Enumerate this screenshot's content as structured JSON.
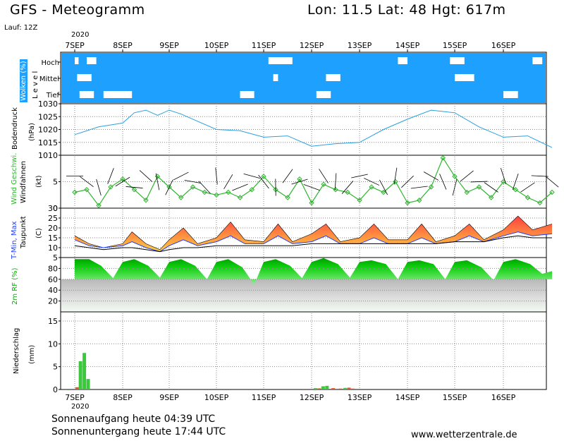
{
  "header": {
    "title": "GFS - Meteogramm",
    "location": "Lon: 11.5 Lat: 48 Hgt: 617m",
    "run": "Lauf: 12Z",
    "year_top": "2020",
    "year_bottom": "2020"
  },
  "footer": {
    "sunrise": "Sonnenaufgang heute 04:39 UTC",
    "sunset": "Sonnenuntergang heute 17:44 UTC",
    "site": "www.wetterzentrale.de"
  },
  "colors": {
    "cloud": "#1ea0ff",
    "pressure_line": "#2aa0e0",
    "wind": "#2fb52f",
    "tmax_top": "#ff4040",
    "tmax_bottom": "#ffd040",
    "tmin": "#1e3cff",
    "dew": "#000000",
    "rh": "#00cc00",
    "precip_conv": "#3cc83c",
    "precip_large": "#e05a28"
  },
  "chart_data": {
    "type": "meteogram",
    "days": [
      "7SEP",
      "8SEP",
      "9SEP",
      "10SEP",
      "11SEP",
      "12SEP",
      "13SEP",
      "14SEP",
      "15SEP",
      "16SEP"
    ],
    "clouds": {
      "ylabel": "Wolken (%)",
      "ylabel2": "L e v e l",
      "levels": [
        "Hoch",
        "Mittel",
        "Tief"
      ],
      "gaps": [
        {
          "level": "Hoch",
          "t": [
            0.0,
            0.08
          ]
        },
        {
          "level": "Hoch",
          "t": [
            0.25,
            0.45
          ]
        },
        {
          "level": "Hoch",
          "t": [
            4.1,
            4.6
          ]
        },
        {
          "level": "Hoch",
          "t": [
            6.8,
            7.0
          ]
        },
        {
          "level": "Hoch",
          "t": [
            7.9,
            8.2
          ]
        },
        {
          "level": "Hoch",
          "t": [
            9.6,
            9.8
          ]
        },
        {
          "level": "Mittel",
          "t": [
            0.05,
            0.35
          ]
        },
        {
          "level": "Mittel",
          "t": [
            4.2,
            4.3
          ]
        },
        {
          "level": "Mittel",
          "t": [
            5.3,
            5.6
          ]
        },
        {
          "level": "Mittel",
          "t": [
            8.0,
            8.4
          ]
        },
        {
          "level": "Tief",
          "t": [
            0.1,
            0.4
          ]
        },
        {
          "level": "Tief",
          "t": [
            0.6,
            1.2
          ]
        },
        {
          "level": "Tief",
          "t": [
            3.5,
            3.8
          ]
        },
        {
          "level": "Tief",
          "t": [
            5.1,
            5.4
          ]
        },
        {
          "level": "Tief",
          "t": [
            9.0,
            9.3
          ]
        },
        {
          "level": "Tief",
          "t": [
            9.9,
            10.0
          ]
        }
      ]
    },
    "pressure": {
      "ylabel": "Bodendruck",
      "unit": "(hPa)",
      "ticks": [
        1010,
        1015,
        1020,
        1025,
        1030
      ],
      "ylim": [
        1010,
        1030
      ],
      "t": [
        0,
        0.5,
        1,
        1.25,
        1.5,
        1.75,
        2,
        2.25,
        2.5,
        3,
        3.5,
        4,
        4.5,
        5,
        5.5,
        6,
        6.5,
        7,
        7.5,
        8,
        8.5,
        9,
        9.5,
        10
      ],
      "values": [
        1018,
        1021,
        1022.5,
        1026.5,
        1027.5,
        1025.5,
        1027.5,
        1026,
        1024,
        1020,
        1019.5,
        1017,
        1017.5,
        1013.5,
        1014.5,
        1015,
        1020,
        1024,
        1027.5,
        1026.5,
        1021,
        1017,
        1017.5,
        1013
      ]
    },
    "wind": {
      "ylabel": "Wind Geschwi.",
      "ylabel2": "Windfahnen",
      "unit": "(kt)",
      "ticks": [
        0,
        5
      ],
      "ylim": [
        0,
        10
      ],
      "t": [
        0,
        0.25,
        0.5,
        0.75,
        1,
        1.25,
        1.5,
        1.75,
        2,
        2.25,
        2.5,
        2.75,
        3,
        3.25,
        3.5,
        3.75,
        4,
        4.25,
        4.5,
        4.75,
        5,
        5.25,
        5.5,
        5.75,
        6,
        6.25,
        6.5,
        6.75,
        7,
        7.25,
        7.5,
        7.75,
        8,
        8.25,
        8.5,
        8.75,
        9,
        9.25,
        9.5,
        9.75,
        10
      ],
      "values": [
        3,
        3.5,
        0.5,
        4,
        5.5,
        3.5,
        1.5,
        6,
        4,
        2,
        4,
        3,
        2.5,
        3,
        2,
        3.5,
        6,
        3.5,
        2,
        5.5,
        1,
        4.5,
        3.5,
        3,
        1.5,
        4,
        3,
        5,
        1,
        1.5,
        4,
        9.5,
        6,
        3,
        4,
        2,
        5,
        3.5,
        2,
        1,
        3
      ]
    },
    "temperature": {
      "ylabel": "T-Min, Max",
      "ylabel2": "Taupunkt",
      "unit": "(C)",
      "ticks": [
        5,
        10,
        15,
        20,
        25,
        30
      ],
      "ylim": [
        5,
        30
      ],
      "t": [
        0,
        0.3,
        0.6,
        1,
        1.2,
        1.5,
        1.8,
        2,
        2.3,
        2.6,
        3,
        3.3,
        3.6,
        4,
        4.3,
        4.6,
        5,
        5.3,
        5.6,
        6,
        6.3,
        6.6,
        7,
        7.3,
        7.6,
        8,
        8.3,
        8.6,
        9,
        9.3,
        9.6,
        10
      ],
      "tmax": [
        16,
        12,
        10,
        12,
        18,
        12,
        9,
        14,
        20,
        12,
        15,
        23,
        14,
        13,
        22,
        13,
        17,
        22,
        13,
        15,
        22,
        14,
        14,
        22,
        13,
        16,
        22,
        14,
        19,
        26,
        19,
        22
      ],
      "tmin": [
        14,
        11,
        10,
        11,
        13,
        10,
        8,
        11,
        14,
        11,
        13,
        16,
        12,
        12,
        16,
        12,
        13,
        16,
        12,
        12,
        15,
        12,
        12,
        15,
        12,
        13,
        16,
        13,
        16,
        18,
        16,
        17
      ],
      "dew": [
        11,
        10,
        9,
        10,
        10,
        9,
        8,
        9,
        10,
        10,
        11,
        11,
        11,
        11,
        11,
        11,
        12,
        12,
        12,
        12,
        12,
        12,
        12,
        12,
        12,
        13,
        13,
        13,
        15,
        16,
        15,
        15
      ]
    },
    "humidity": {
      "ylabel": "2m RF (%)",
      "ticks": [
        20,
        40,
        60,
        80
      ],
      "ylim": [
        0,
        100
      ],
      "t": [
        0,
        0.3,
        0.55,
        0.8,
        1,
        1.25,
        1.55,
        1.8,
        2,
        2.25,
        2.55,
        2.8,
        3,
        3.25,
        3.55,
        3.8,
        4,
        4.25,
        4.55,
        4.8,
        5,
        5.25,
        5.55,
        5.8,
        6,
        6.25,
        6.55,
        6.8,
        7,
        7.25,
        7.55,
        7.8,
        8,
        8.25,
        8.55,
        8.8,
        9,
        9.25,
        9.55,
        9.8,
        10
      ],
      "values": [
        97,
        97,
        85,
        62,
        92,
        97,
        85,
        63,
        92,
        97,
        85,
        60,
        92,
        97,
        82,
        50,
        92,
        97,
        85,
        62,
        92,
        99,
        88,
        63,
        92,
        95,
        88,
        60,
        92,
        95,
        88,
        60,
        92,
        95,
        82,
        58,
        92,
        97,
        88,
        70,
        75
      ]
    },
    "precip": {
      "ylabel": "Niederschlag",
      "unit": "(mm)",
      "ticks": [
        0,
        5,
        10,
        15
      ],
      "ylim": [
        0,
        17
      ],
      "bars": [
        {
          "t": 0.05,
          "v": 0.5,
          "kind": "large"
        },
        {
          "t": 0.12,
          "v": 6.2,
          "kind": "conv"
        },
        {
          "t": 0.2,
          "v": 8.0,
          "kind": "conv"
        },
        {
          "t": 0.28,
          "v": 2.3,
          "kind": "conv"
        },
        {
          "t": 1.05,
          "v": 0.15,
          "kind": "large"
        },
        {
          "t": 5.0,
          "v": 0.15,
          "kind": "large"
        },
        {
          "t": 5.08,
          "v": 0.3,
          "kind": "conv"
        },
        {
          "t": 5.16,
          "v": 0.25,
          "kind": "large"
        },
        {
          "t": 5.24,
          "v": 0.7,
          "kind": "conv"
        },
        {
          "t": 5.32,
          "v": 0.8,
          "kind": "conv"
        },
        {
          "t": 5.45,
          "v": 0.3,
          "kind": "large"
        },
        {
          "t": 5.6,
          "v": 0.2,
          "kind": "large"
        },
        {
          "t": 5.7,
          "v": 0.35,
          "kind": "conv"
        },
        {
          "t": 5.78,
          "v": 0.4,
          "kind": "large"
        },
        {
          "t": 5.86,
          "v": 0.2,
          "kind": "large"
        }
      ]
    }
  }
}
